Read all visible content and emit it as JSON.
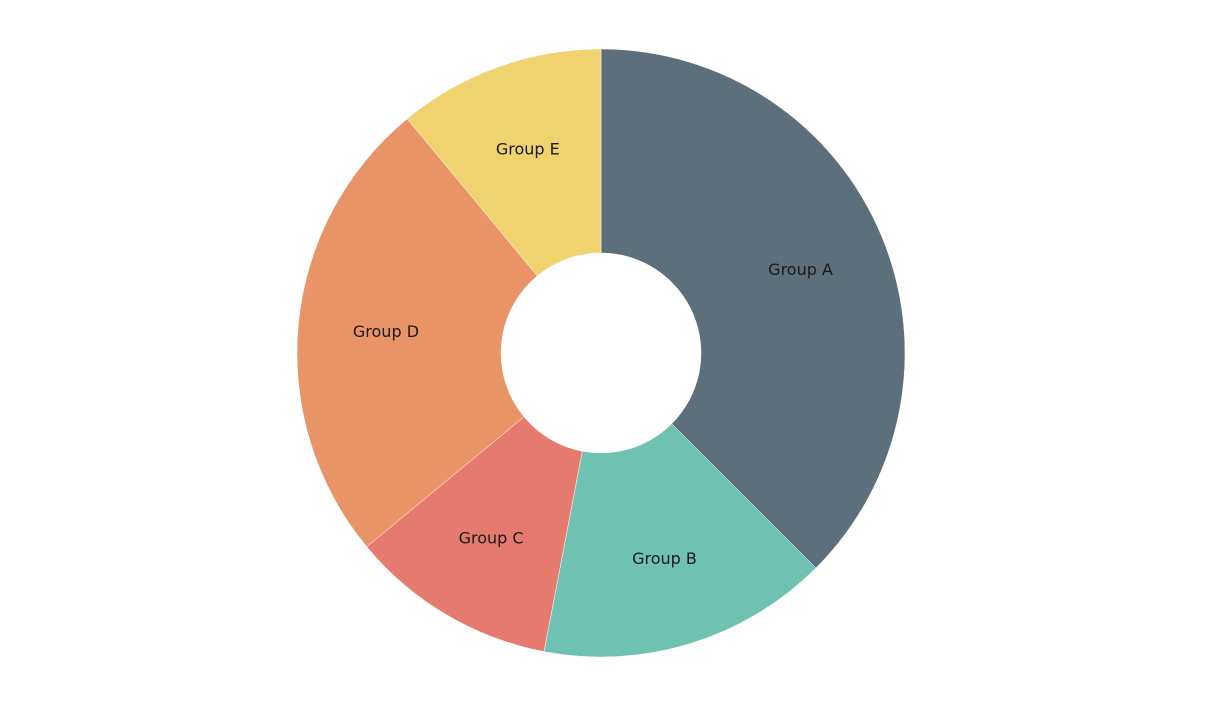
{
  "chart_data": {
    "type": "pie",
    "variant": "donut",
    "title": "",
    "categories": [
      "Group A",
      "Group B",
      "Group C",
      "Group D",
      "Group E"
    ],
    "values": [
      37.5,
      15.5,
      11.0,
      25.0,
      11.0
    ],
    "colors": [
      "#5d6f7a",
      "#6fc1b2",
      "#e67a6e",
      "#e89467",
      "#f0d36f"
    ],
    "legend": "none",
    "labels_inside": true
  }
}
